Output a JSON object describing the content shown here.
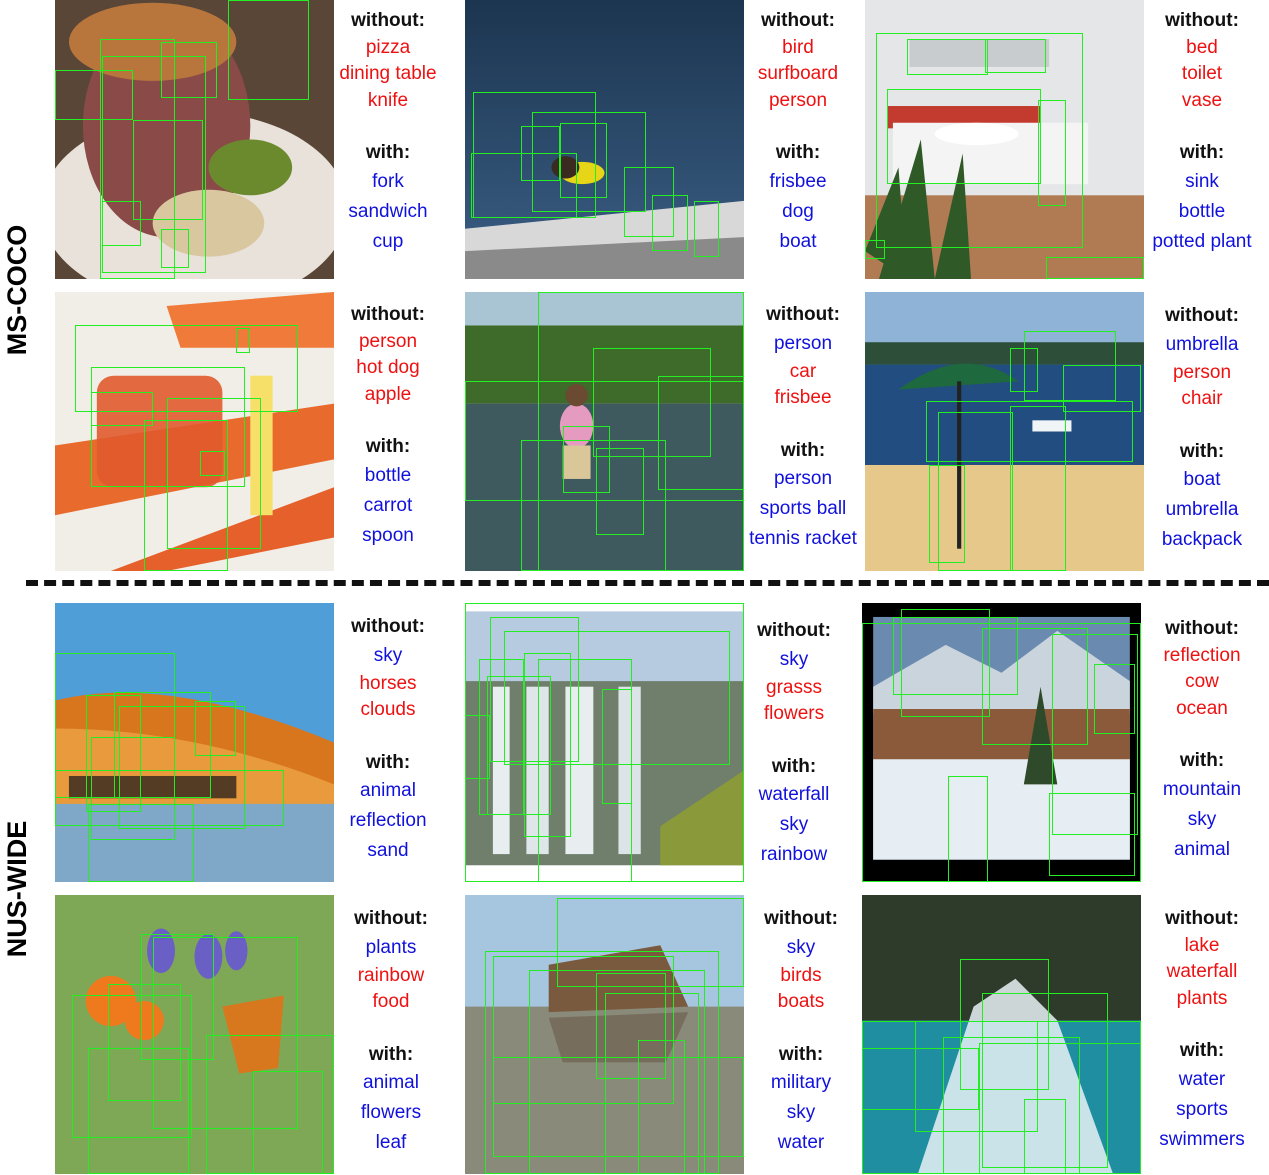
{
  "sections": {
    "coco_label": "MS-COCO",
    "nus_label": "NUS-WIDE"
  },
  "headers": {
    "without": "without:",
    "with": "with:"
  },
  "colors": {
    "absent": "#ee1111",
    "present": "#1111dd",
    "box": "#22ee22"
  },
  "panels": [
    {
      "without": [
        {
          "t": "pizza",
          "c": "neg"
        },
        {
          "t": "dining table",
          "c": "neg"
        },
        {
          "t": "knife",
          "c": "neg"
        }
      ],
      "with": [
        "fork",
        "sandwich",
        "cup"
      ]
    },
    {
      "without": [
        {
          "t": "bird",
          "c": "neg"
        },
        {
          "t": "surfboard",
          "c": "neg"
        },
        {
          "t": "person",
          "c": "neg"
        }
      ],
      "with": [
        "frisbee",
        "dog",
        "boat"
      ]
    },
    {
      "without": [
        {
          "t": "bed",
          "c": "neg"
        },
        {
          "t": "toilet",
          "c": "neg"
        },
        {
          "t": "vase",
          "c": "neg"
        }
      ],
      "with": [
        "sink",
        "bottle",
        "potted plant"
      ]
    },
    {
      "without": [
        {
          "t": "person",
          "c": "neg"
        },
        {
          "t": "hot dog",
          "c": "neg"
        },
        {
          "t": "apple",
          "c": "neg"
        }
      ],
      "with": [
        "bottle",
        "carrot",
        "spoon"
      ]
    },
    {
      "without": [
        {
          "t": "person",
          "c": "pos"
        },
        {
          "t": "car",
          "c": "neg"
        },
        {
          "t": "frisbee",
          "c": "neg"
        }
      ],
      "with": [
        "person",
        "sports ball",
        "tennis racket"
      ]
    },
    {
      "without": [
        {
          "t": "umbrella",
          "c": "pos"
        },
        {
          "t": "person",
          "c": "neg"
        },
        {
          "t": "chair",
          "c": "neg"
        }
      ],
      "with": [
        "boat",
        "umbrella",
        "backpack"
      ]
    },
    {
      "without": [
        {
          "t": "sky",
          "c": "pos"
        },
        {
          "t": "horses",
          "c": "neg"
        },
        {
          "t": "clouds",
          "c": "neg"
        }
      ],
      "with": [
        "animal",
        "reflection",
        "sand"
      ]
    },
    {
      "without": [
        {
          "t": "sky",
          "c": "pos"
        },
        {
          "t": "grasss",
          "c": "neg"
        },
        {
          "t": "flowers",
          "c": "neg"
        }
      ],
      "with": [
        "waterfall",
        "sky",
        "rainbow"
      ]
    },
    {
      "without": [
        {
          "t": "reflection",
          "c": "neg"
        },
        {
          "t": "cow",
          "c": "neg"
        },
        {
          "t": "ocean",
          "c": "neg"
        }
      ],
      "with": [
        "mountain",
        "sky",
        "animal"
      ]
    },
    {
      "without": [
        {
          "t": "plants",
          "c": "pos"
        },
        {
          "t": "rainbow",
          "c": "neg"
        },
        {
          "t": "food",
          "c": "neg"
        }
      ],
      "with": [
        "animal",
        "flowers",
        "leaf"
      ]
    },
    {
      "without": [
        {
          "t": "sky",
          "c": "pos"
        },
        {
          "t": "birds",
          "c": "neg"
        },
        {
          "t": "boats",
          "c": "neg"
        }
      ],
      "with": [
        "military",
        "sky",
        "water"
      ]
    },
    {
      "without": [
        {
          "t": "lake",
          "c": "neg"
        },
        {
          "t": "waterfall",
          "c": "neg"
        },
        {
          "t": "plants",
          "c": "neg"
        }
      ],
      "with": [
        "water",
        "sports",
        "swimmers"
      ]
    }
  ]
}
